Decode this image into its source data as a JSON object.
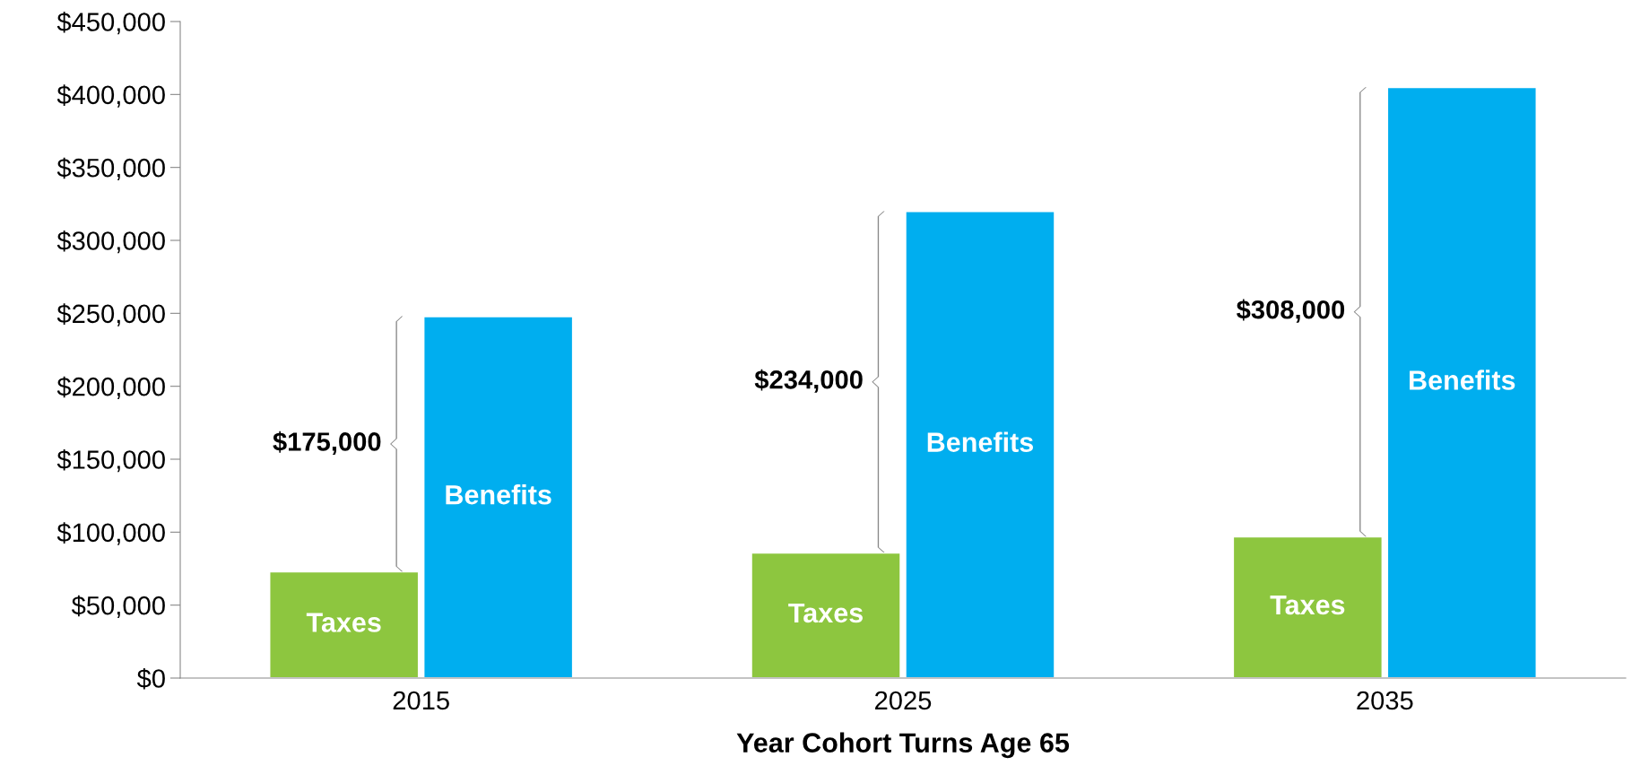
{
  "chart_data": {
    "type": "bar",
    "xlabel": "Year Cohort Turns Age 65",
    "categories": [
      "2015",
      "2025",
      "2035"
    ],
    "series": [
      {
        "name": "Taxes",
        "color": "#8dc63f",
        "values": [
          73000,
          86000,
          97000
        ]
      },
      {
        "name": "Benefits",
        "color": "#00aeef",
        "values": [
          248000,
          320000,
          405000
        ]
      }
    ],
    "ylim": [
      0,
      450000
    ],
    "yticks": [
      {
        "value": 0,
        "label": "$0"
      },
      {
        "value": 50000,
        "label": "$50,000"
      },
      {
        "value": 100000,
        "label": "$100,000"
      },
      {
        "value": 150000,
        "label": "$150,000"
      },
      {
        "value": 200000,
        "label": "$200,000"
      },
      {
        "value": 250000,
        "label": "$250,000"
      },
      {
        "value": 300000,
        "label": "$300,000"
      },
      {
        "value": 350000,
        "label": "$350,000"
      },
      {
        "value": 400000,
        "label": "$400,000"
      },
      {
        "value": 450000,
        "label": "$450,000"
      }
    ],
    "grid": false,
    "legend": false,
    "annotations": [
      {
        "text": "$175,000",
        "x": "2015",
        "y": 160500
      },
      {
        "text": "$234,000",
        "x": "2025",
        "y": 203000
      },
      {
        "text": "$308,000",
        "x": "2035",
        "y": 251000
      }
    ]
  }
}
